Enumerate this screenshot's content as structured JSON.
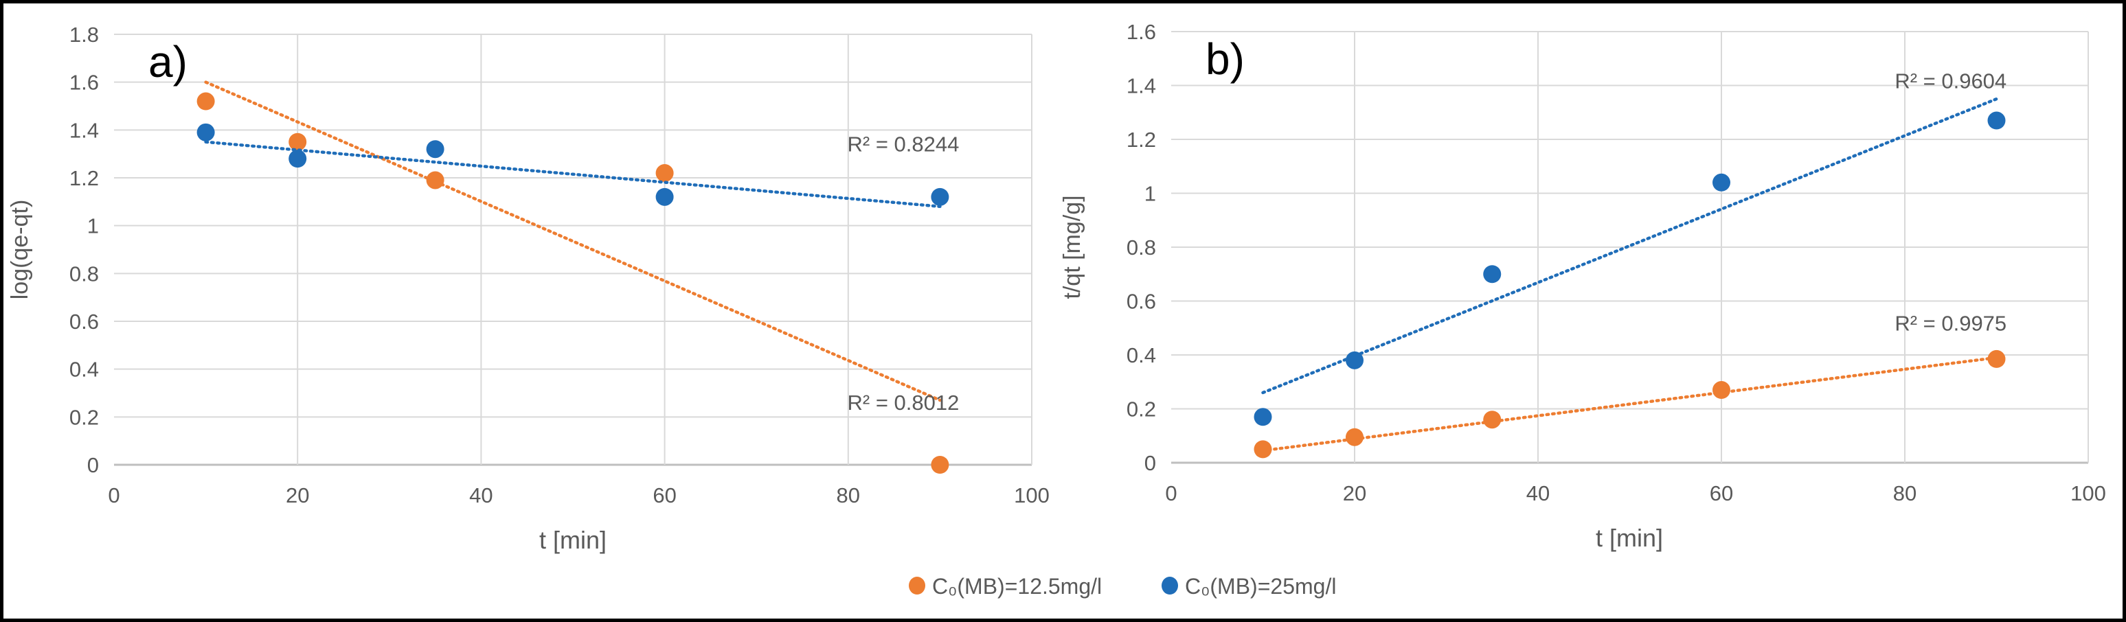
{
  "colors": {
    "orange": "#ED7D31",
    "blue": "#1F6DB8",
    "grid": "#D9D9D9",
    "axis": "#BFBFBF",
    "text": "#595959"
  },
  "legend": {
    "items": [
      {
        "label": "C₀(MB)=12.5mg/l",
        "color": "orange"
      },
      {
        "label": "C₀(MB)=25mg/l",
        "color": "blue"
      }
    ],
    "placement": "bottom-center"
  },
  "chart_data": [
    {
      "type": "scatter",
      "panel_label": "a)",
      "xlabel": "t [min]",
      "ylabel": "log(qe-qt)",
      "xlim": [
        0,
        100
      ],
      "ylim": [
        0,
        1.8
      ],
      "xticks": [
        "0",
        "20",
        "40",
        "60",
        "80",
        "100"
      ],
      "yticks": [
        "0",
        "0.2",
        "0.4",
        "0.6",
        "0.8",
        "1",
        "1.2",
        "1.4",
        "1.6",
        "1.8"
      ],
      "grid": true,
      "series": [
        {
          "name": "C₀(MB)=12.5mg/l",
          "color": "orange",
          "x": [
            10,
            20,
            35,
            60,
            90
          ],
          "y": [
            1.52,
            1.35,
            1.19,
            1.22,
            0.0
          ],
          "trendline": {
            "x": [
              10,
              90
            ],
            "y": [
              1.6,
              0.27
            ]
          },
          "r2_label": "R² = 0.8012",
          "r2_at": [
            86,
            0.23
          ]
        },
        {
          "name": "C₀(MB)=25mg/l",
          "color": "blue",
          "x": [
            10,
            20,
            35,
            60,
            90
          ],
          "y": [
            1.39,
            1.28,
            1.32,
            1.12,
            1.12
          ],
          "trendline": {
            "x": [
              10,
              90
            ],
            "y": [
              1.35,
              1.08
            ]
          },
          "r2_label": "R² = 0.8244",
          "r2_at": [
            86,
            1.31
          ]
        }
      ]
    },
    {
      "type": "scatter",
      "panel_label": "b)",
      "xlabel": "t [min]",
      "ylabel": "t/qt [mg/g]",
      "xlim": [
        0,
        100
      ],
      "ylim": [
        0,
        1.6
      ],
      "xticks": [
        "0",
        "20",
        "40",
        "60",
        "80",
        "100"
      ],
      "yticks": [
        "0",
        "0.2",
        "0.4",
        "0.6",
        "0.8",
        "1",
        "1.2",
        "1.4",
        "1.6"
      ],
      "grid": true,
      "series": [
        {
          "name": "C₀(MB)=12.5mg/l",
          "color": "orange",
          "x": [
            10,
            20,
            35,
            60,
            90
          ],
          "y": [
            0.05,
            0.095,
            0.16,
            0.27,
            0.385
          ],
          "trendline": {
            "x": [
              10,
              90
            ],
            "y": [
              0.045,
              0.39
            ]
          },
          "r2_label": "R² = 0.9975",
          "r2_at": [
            85,
            0.49
          ]
        },
        {
          "name": "C₀(MB)=25mg/l",
          "color": "blue",
          "x": [
            10,
            20,
            35,
            60,
            90
          ],
          "y": [
            0.17,
            0.38,
            0.7,
            1.04,
            1.27
          ],
          "trendline": {
            "x": [
              10,
              90
            ],
            "y": [
              0.26,
              1.35
            ]
          },
          "r2_label": "R² = 0.9604",
          "r2_at": [
            85,
            1.39
          ]
        }
      ]
    }
  ]
}
